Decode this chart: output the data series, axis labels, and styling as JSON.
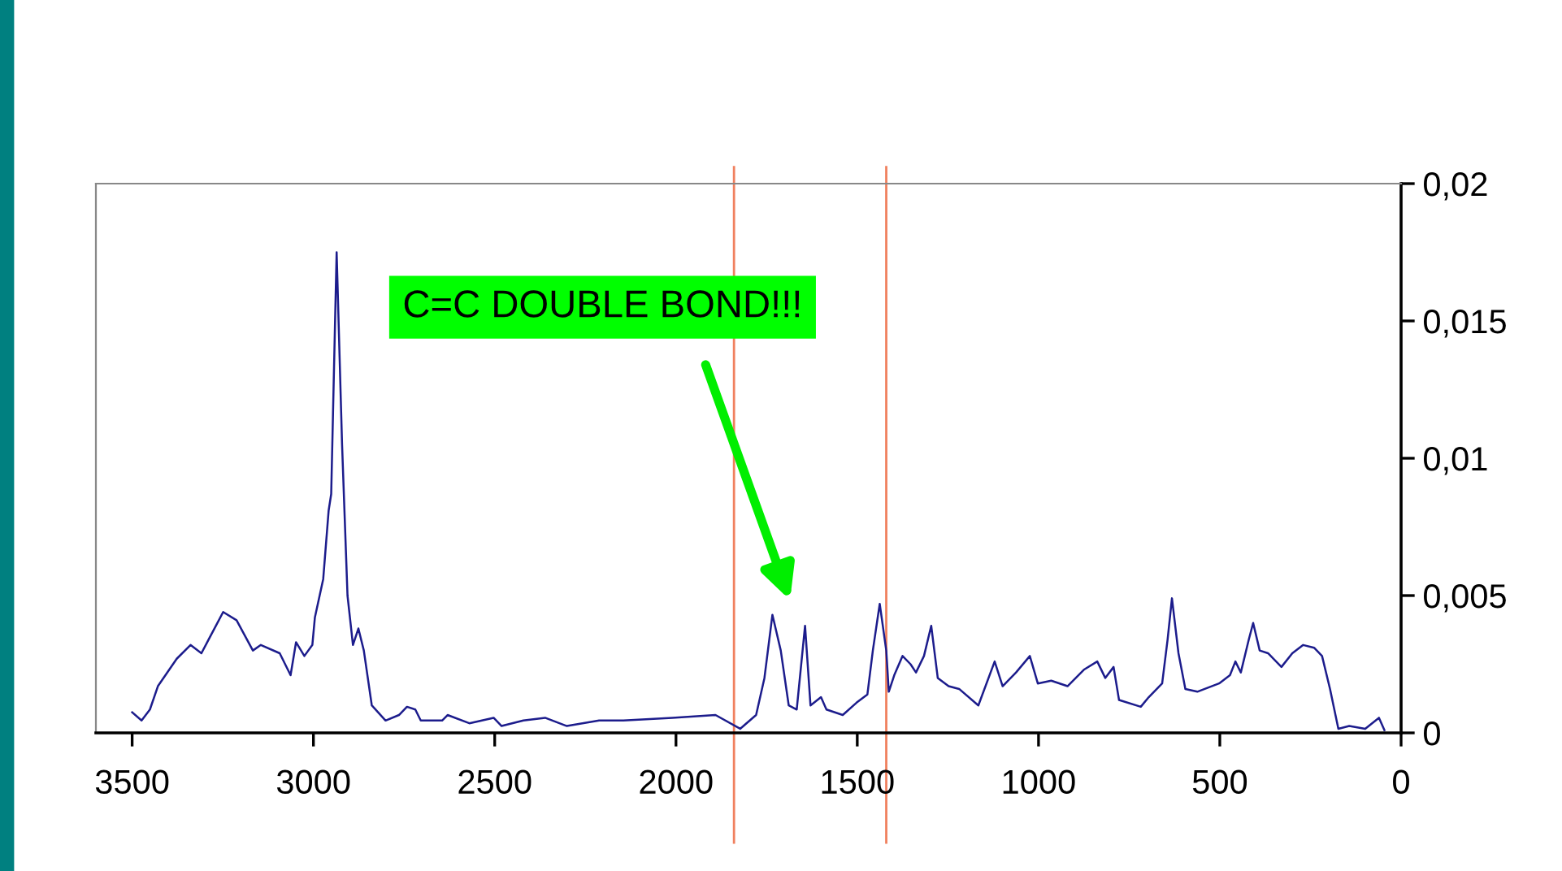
{
  "chart_data": {
    "type": "line",
    "x": [
      3500,
      3474,
      3451,
      3429,
      3377,
      3339,
      3309,
      3249,
      3212,
      3167,
      3145,
      3093,
      3063,
      3048,
      3025,
      3003,
      2996,
      2973,
      2958,
      2951,
      2936,
      2921,
      2906,
      2891,
      2876,
      2861,
      2839,
      2801,
      2764,
      2742,
      2719,
      2704,
      2645,
      2630,
      2570,
      2503,
      2481,
      2421,
      2361,
      2301,
      2212,
      2145,
      2010,
      1891,
      1823,
      1779,
      1756,
      1734,
      1711,
      1689,
      1667,
      1644,
      1629,
      1600,
      1585,
      1540,
      1502,
      1472,
      1457,
      1438,
      1420,
      1413,
      1398,
      1375,
      1353,
      1338,
      1316,
      1296,
      1278,
      1248,
      1219,
      1166,
      1121,
      1099,
      1062,
      1024,
      1002,
      965,
      920,
      875,
      838,
      816,
      793,
      778,
      718,
      696,
      659,
      644,
      632,
      614,
      595,
      562,
      502,
      472,
      457,
      442,
      420,
      408,
      390,
      367,
      330,
      300,
      270,
      240,
      218,
      196,
      173,
      143,
      99,
      61,
      46
    ],
    "series": [
      {
        "color": "#1c1c8c",
        "values": [
          0.00075,
          0.00045,
          0.00085,
          0.0017,
          0.0027,
          0.0032,
          0.0029,
          0.0044,
          0.0041,
          0.003,
          0.0032,
          0.0029,
          0.0021,
          0.0033,
          0.0028,
          0.0032,
          0.0042,
          0.0056,
          0.0081,
          0.0087,
          0.0175,
          0.0105,
          0.005,
          0.0032,
          0.0038,
          0.003,
          0.001,
          0.00045,
          0.00065,
          0.00095,
          0.00085,
          0.00045,
          0.00045,
          0.00065,
          0.00035,
          0.00055,
          0.00025,
          0.00045,
          0.00055,
          0.00025,
          0.00045,
          0.00045,
          0.00055,
          0.00065,
          0.00015,
          0.00065,
          0.002,
          0.0043,
          0.003,
          0.001,
          0.00085,
          0.0039,
          0.001,
          0.0013,
          0.00085,
          0.00065,
          0.0011,
          0.0014,
          0.003,
          0.0047,
          0.003,
          0.0015,
          0.0021,
          0.0028,
          0.0025,
          0.0022,
          0.0028,
          0.0039,
          0.002,
          0.0017,
          0.0016,
          0.001,
          0.0026,
          0.0017,
          0.0022,
          0.0028,
          0.0018,
          0.0019,
          0.0017,
          0.0023,
          0.0026,
          0.002,
          0.0024,
          0.0012,
          0.00095,
          0.0013,
          0.0018,
          0.0034,
          0.0049,
          0.0029,
          0.0016,
          0.0015,
          0.0018,
          0.0021,
          0.0026,
          0.0022,
          0.0034,
          0.004,
          0.003,
          0.0029,
          0.0024,
          0.0029,
          0.0032,
          0.0031,
          0.0028,
          0.0016,
          0.00015,
          0.00025,
          0.00015,
          0.00055,
          0.0001
        ]
      }
    ],
    "xlim": [
      3600,
      0
    ],
    "xticks": [
      3500,
      3000,
      2500,
      2000,
      1500,
      1000,
      500,
      0
    ],
    "ylim": [
      0,
      0.02
    ],
    "yticks": [
      {
        "value": 0,
        "label": "0"
      },
      {
        "value": 0.005,
        "label": "0,005"
      },
      {
        "value": 0.01,
        "label": "0,01"
      },
      {
        "value": 0.015,
        "label": "0,015"
      },
      {
        "value": 0.02,
        "label": "0,02"
      }
    ],
    "ref_lines": [
      {
        "axis": "x",
        "value": 1840,
        "color": "#f0805e"
      },
      {
        "axis": "x",
        "value": 1420,
        "color": "#f0805e"
      }
    ],
    "annotations": [
      "C=C DOUBLE BOND!!!"
    ],
    "grid": false,
    "legend": false,
    "marker": "none",
    "line_style": "solid"
  }
}
